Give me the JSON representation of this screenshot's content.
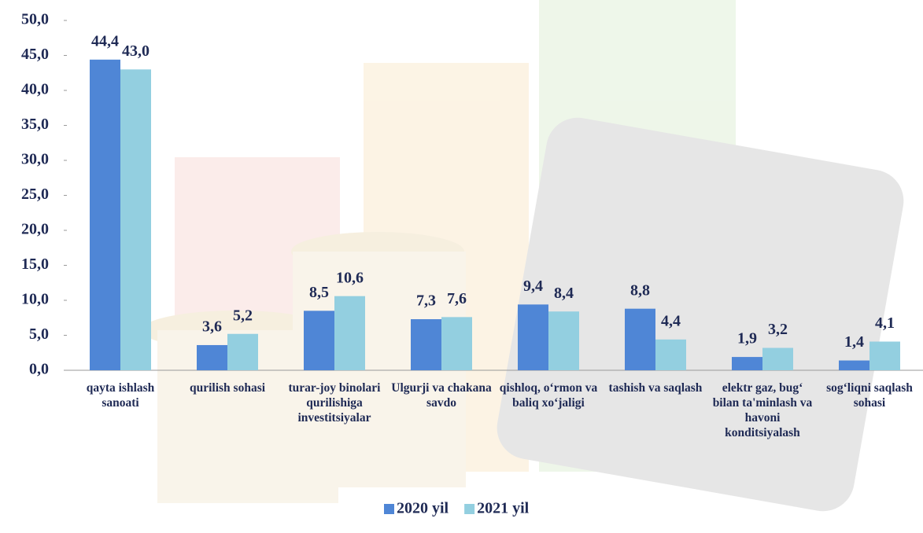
{
  "chart_data": {
    "type": "bar",
    "categories": [
      "qayta ishlash sanoati",
      "qurilish sohasi",
      "turar-joy binolari qurilishiga investitsiyalar",
      "Ulgurji va chakana savdo",
      "qishloq, o‘rmon va baliq xo‘jaligi",
      "tashish va saqlash",
      "elektr gaz, bug‘ bilan ta'minlash va havoni konditsiyalash",
      "sog‘liqni saqlash sohasi"
    ],
    "series": [
      {
        "name": "2020 yil",
        "color": "#4f86d6",
        "values": [
          44.4,
          3.6,
          8.5,
          7.3,
          9.4,
          8.8,
          1.9,
          1.4
        ],
        "value_labels": [
          "44,4",
          "3,6",
          "8,5",
          "7,3",
          "9,4",
          "8,8",
          "1,9",
          "1,4"
        ]
      },
      {
        "name": "2021 yil",
        "color": "#93cfe0",
        "values": [
          43.0,
          5.2,
          10.6,
          7.6,
          8.4,
          4.4,
          3.2,
          4.1
        ],
        "value_labels": [
          "43,0",
          "5,2",
          "10,6",
          "7,6",
          "8,4",
          "4,4",
          "3,2",
          "4,1"
        ]
      }
    ],
    "ylim": [
      0,
      50
    ],
    "yticks": [
      {
        "value": 0,
        "label": "0,0"
      },
      {
        "value": 5,
        "label": "5,0"
      },
      {
        "value": 10,
        "label": "10,0"
      },
      {
        "value": 15,
        "label": "15,0"
      },
      {
        "value": 20,
        "label": "20,0"
      },
      {
        "value": 25,
        "label": "25,0"
      },
      {
        "value": 30,
        "label": "30,0"
      },
      {
        "value": 35,
        "label": "35,0"
      },
      {
        "value": 40,
        "label": "40,0"
      },
      {
        "value": 45,
        "label": "45,0"
      },
      {
        "value": 50,
        "label": "50,0"
      }
    ],
    "grid": false,
    "legend": "bottom"
  }
}
